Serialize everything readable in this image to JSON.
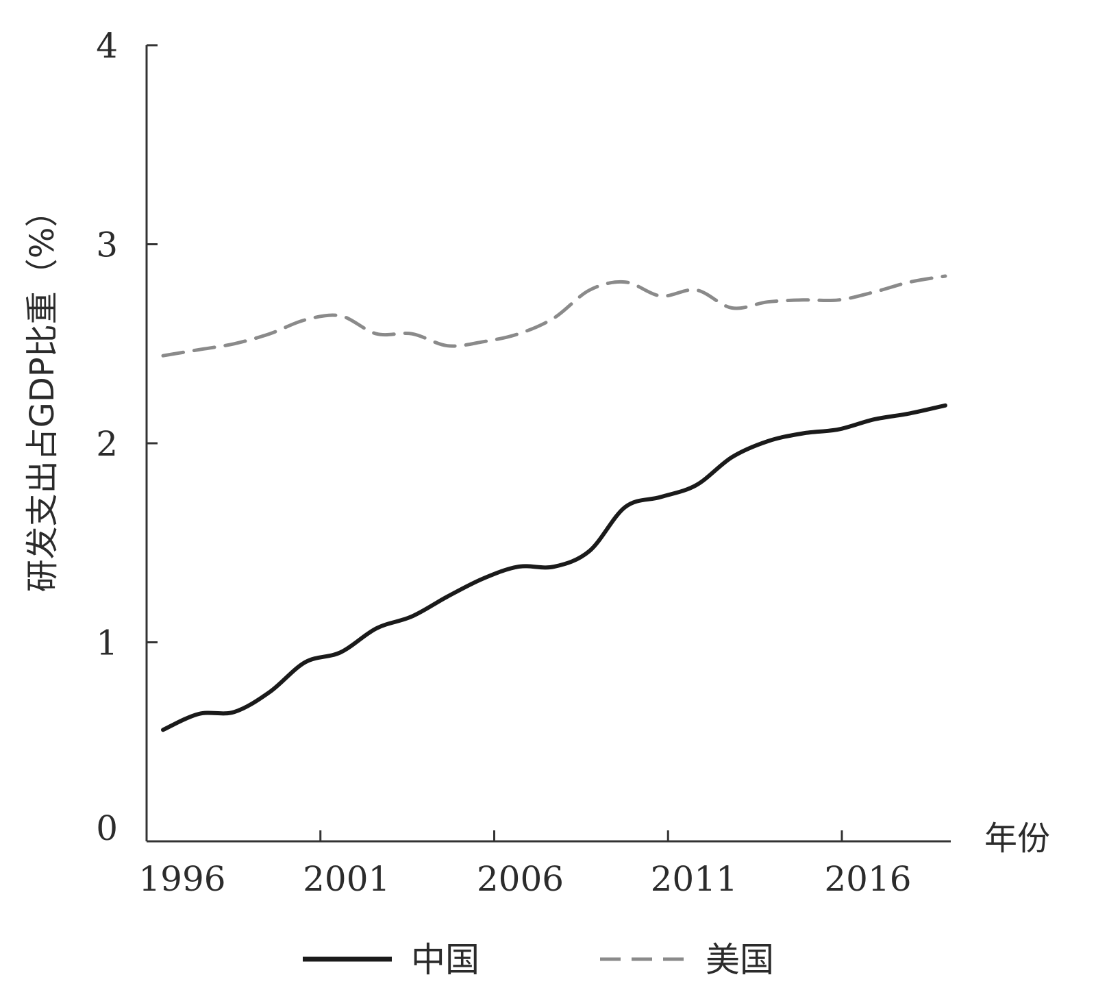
{
  "chart_data": {
    "type": "line",
    "title": "",
    "xlabel": "年份",
    "ylabel": "研发支出占GDP比重（%）",
    "x": [
      1996,
      1997,
      1998,
      1999,
      2000,
      2001,
      2002,
      2003,
      2004,
      2005,
      2006,
      2007,
      2008,
      2009,
      2010,
      2011,
      2012,
      2013,
      2014,
      2015,
      2016,
      2017,
      2018
    ],
    "xticks": [
      "1996",
      "2001",
      "2006",
      "2011",
      "2016"
    ],
    "yticks": [
      "0",
      "1",
      "2",
      "3",
      "4"
    ],
    "xlim": [
      1996,
      2018
    ],
    "ylim": [
      0,
      4
    ],
    "grid": false,
    "legend": "bottom",
    "series": [
      {
        "name": "中国",
        "style": "solid",
        "color": "#1a1a1a",
        "values": [
          0.56,
          0.64,
          0.65,
          0.75,
          0.9,
          0.95,
          1.07,
          1.13,
          1.23,
          1.32,
          1.38,
          1.38,
          1.46,
          1.68,
          1.73,
          1.79,
          1.93,
          2.01,
          2.05,
          2.07,
          2.12,
          2.15,
          2.19
        ]
      },
      {
        "name": "美国",
        "style": "dashed",
        "color": "#8a8a8a",
        "values": [
          2.44,
          2.47,
          2.5,
          2.55,
          2.62,
          2.64,
          2.55,
          2.55,
          2.49,
          2.51,
          2.55,
          2.63,
          2.77,
          2.81,
          2.74,
          2.77,
          2.68,
          2.71,
          2.72,
          2.72,
          2.76,
          2.81,
          2.84
        ]
      }
    ]
  }
}
